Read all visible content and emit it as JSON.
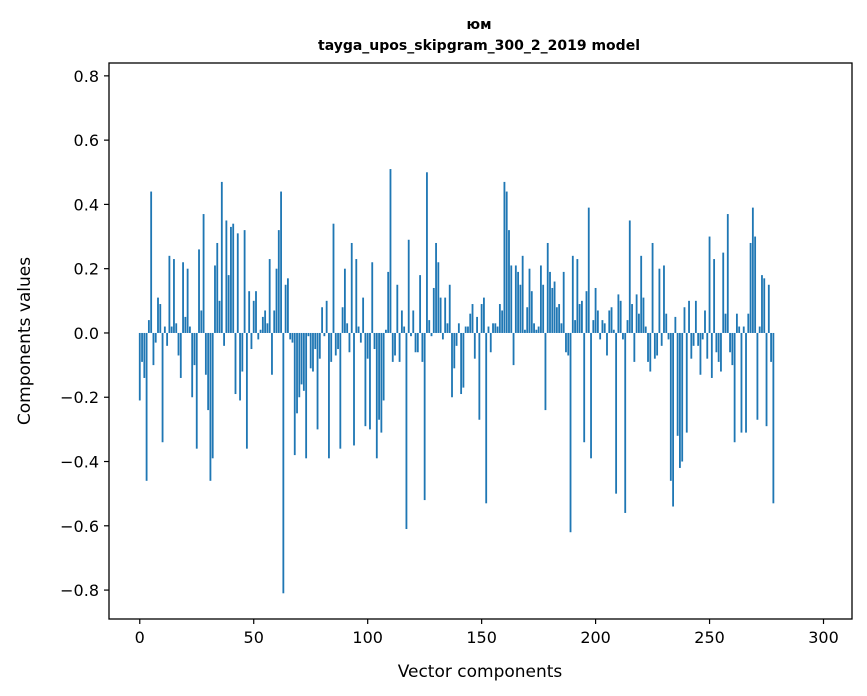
{
  "chart_data": {
    "type": "bar",
    "title": "юм",
    "subtitle": "tayga_upos_skipgram_300_2_2019 model",
    "xlabel": "Vector components",
    "ylabel": "Components values",
    "xlim": [
      -13.5,
      312.5
    ],
    "ylim": [
      -0.89,
      0.84
    ],
    "xticks": [
      0,
      50,
      100,
      150,
      200,
      250,
      300
    ],
    "xtick_labels": [
      "0",
      "50",
      "100",
      "150",
      "200",
      "250",
      "300"
    ],
    "yticks": [
      -0.8,
      -0.6,
      -0.4,
      -0.2,
      0.0,
      0.2,
      0.4,
      0.6,
      0.8
    ],
    "ytick_labels": [
      "−0.8",
      "−0.6",
      "−0.4",
      "−0.2",
      "0.0",
      "0.2",
      "0.4",
      "0.6",
      "0.8"
    ],
    "grid": false,
    "legend": "none",
    "bar_color": "#1f77b4",
    "values": [
      -0.21,
      -0.09,
      -0.14,
      -0.46,
      0.04,
      0.44,
      -0.1,
      -0.03,
      0.11,
      0.09,
      -0.34,
      0.02,
      -0.04,
      0.24,
      0.02,
      0.23,
      0.03,
      -0.07,
      -0.14,
      0.22,
      0.05,
      0.2,
      0.02,
      -0.2,
      -0.1,
      -0.36,
      0.26,
      0.07,
      0.37,
      -0.13,
      -0.24,
      -0.46,
      -0.39,
      0.21,
      0.28,
      0.1,
      0.47,
      -0.04,
      0.35,
      0.18,
      0.33,
      0.34,
      -0.19,
      0.31,
      -0.21,
      -0.12,
      0.32,
      -0.36,
      0.13,
      -0.05,
      0.1,
      0.13,
      -0.02,
      0.01,
      0.05,
      0.07,
      0.03,
      0.23,
      -0.13,
      0.07,
      0.2,
      0.32,
      0.44,
      -0.81,
      0.15,
      0.17,
      -0.02,
      -0.03,
      -0.38,
      -0.25,
      -0.2,
      -0.16,
      -0.18,
      -0.39,
      -0.01,
      -0.11,
      -0.12,
      -0.05,
      -0.3,
      -0.08,
      0.08,
      -0.01,
      0.1,
      -0.39,
      -0.09,
      0.34,
      -0.07,
      -0.05,
      -0.36,
      0.08,
      0.2,
      0.03,
      -0.06,
      0.28,
      -0.35,
      0.23,
      0.02,
      -0.03,
      0.11,
      -0.29,
      -0.08,
      -0.3,
      0.22,
      -0.05,
      -0.39,
      -0.27,
      -0.31,
      -0.21,
      0.01,
      0.19,
      0.51,
      -0.09,
      -0.07,
      0.15,
      -0.09,
      0.07,
      0.02,
      -0.61,
      0.29,
      -0.01,
      0.07,
      -0.06,
      -0.06,
      0.18,
      -0.09,
      -0.52,
      0.5,
      0.04,
      -0.01,
      0.14,
      0.28,
      0.22,
      0.11,
      -0.02,
      0.11,
      0.03,
      0.15,
      -0.2,
      -0.11,
      -0.04,
      0.03,
      -0.19,
      -0.17,
      0.02,
      0.02,
      0.06,
      0.09,
      -0.08,
      0.05,
      -0.27,
      0.09,
      0.11,
      -0.53,
      0.02,
      -0.06,
      0.03,
      0.03,
      0.02,
      0.09,
      0.07,
      0.47,
      0.44,
      0.32,
      0.21,
      -0.1,
      0.21,
      0.19,
      0.15,
      0.24,
      0.01,
      0.08,
      0.2,
      0.13,
      0.03,
      0.01,
      0.02,
      0.21,
      0.15,
      -0.24,
      0.28,
      0.19,
      0.14,
      0.16,
      0.08,
      0.09,
      0.03,
      0.19,
      -0.06,
      -0.07,
      -0.62,
      0.24,
      0.04,
      0.23,
      0.09,
      0.1,
      -0.34,
      0.13,
      0.39,
      -0.39,
      0.04,
      0.14,
      0.07,
      -0.02,
      0.04,
      0.03,
      -0.07,
      0.07,
      0.08,
      0.01,
      -0.5,
      0.12,
      0.1,
      -0.02,
      -0.56,
      0.04,
      0.35,
      0.09,
      -0.09,
      0.12,
      0.06,
      0.24,
      0.11,
      0.02,
      -0.09,
      -0.12,
      0.28,
      -0.08,
      -0.07,
      0.2,
      -0.04,
      0.21,
      0.06,
      -0.02,
      -0.46,
      -0.54,
      0.05,
      -0.32,
      -0.42,
      -0.4,
      0.08,
      -0.31,
      0.1,
      -0.08,
      -0.04,
      0.1,
      -0.04,
      -0.13,
      -0.02,
      0.07,
      -0.08,
      0.3,
      -0.14,
      0.23,
      -0.06,
      -0.09,
      -0.12,
      0.25,
      0.06,
      0.37,
      -0.06,
      -0.1,
      -0.34,
      0.06,
      0.02,
      -0.31,
      0.02,
      -0.31,
      0.06,
      0.28,
      0.39,
      0.3,
      -0.27,
      0.02,
      0.18,
      0.17,
      -0.29,
      0.15,
      -0.09,
      -0.53
    ]
  }
}
